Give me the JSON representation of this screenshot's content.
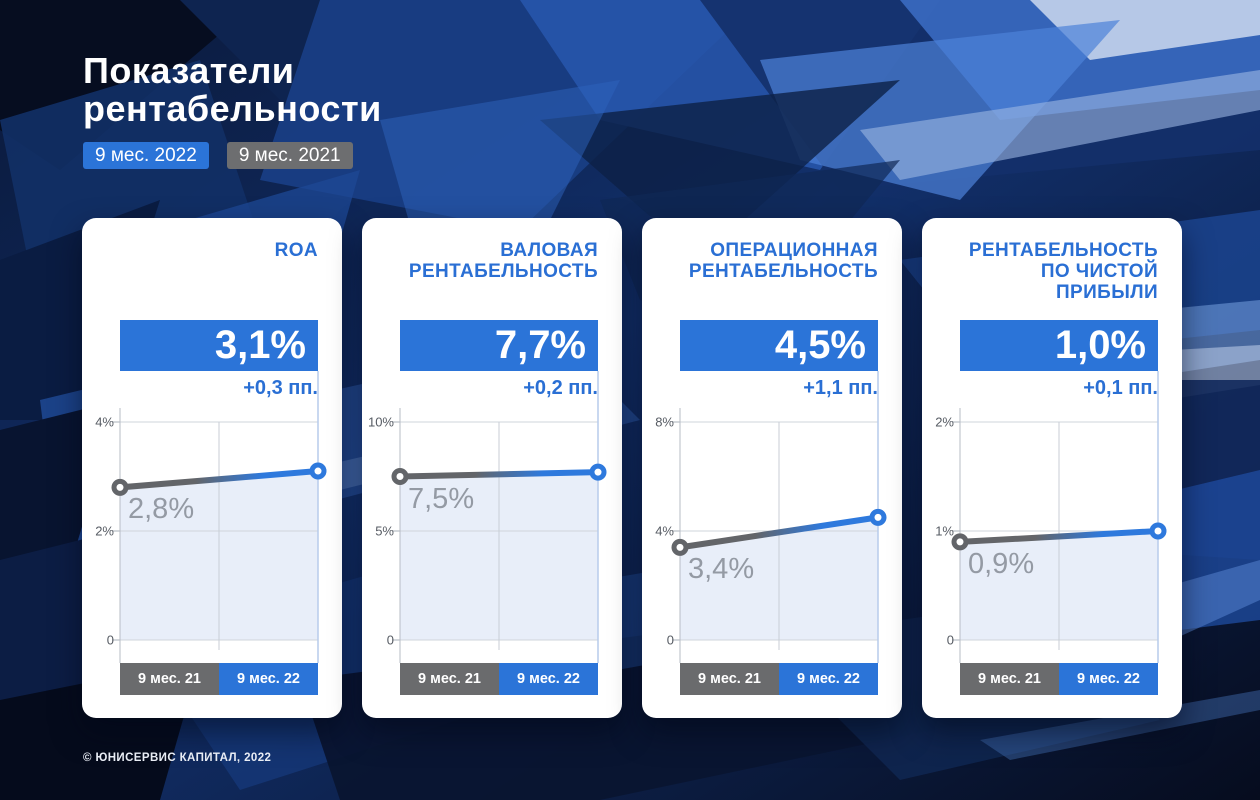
{
  "header": {
    "title_line1": "Показатели",
    "title_line2": "рентабельности",
    "legend": [
      {
        "label": "9 мес. 2022",
        "color": "#2b74d8"
      },
      {
        "label": "9 мес. 2021",
        "color": "#6d6e70"
      }
    ]
  },
  "footer": {
    "copyright": "© ЮНИСЕРВИС КАПИТАЛ, 2022"
  },
  "colors": {
    "accent_blue": "#2b74d8",
    "neutral_gray": "#6a6b6d",
    "line_blue": "#2e79dd",
    "line_gray": "#636569",
    "chart_fill": "#e8eef9",
    "card_bg": "#ffffff",
    "background_navy": "#0b1838"
  },
  "chart_data": [
    {
      "type": "line",
      "title": "ROA",
      "categories": [
        "9 мес. 21",
        "9 мес. 22"
      ],
      "values": [
        2.8,
        3.1
      ],
      "value_label": "3,1%",
      "delta_label": "+0,3 пп.",
      "prev_value_label": "2,8%",
      "ylim": [
        0,
        4
      ],
      "yticks": [
        "4%",
        "2%",
        "0"
      ],
      "grid": true,
      "area_fill": true,
      "legend_position": "none"
    },
    {
      "type": "line",
      "title": "ВАЛОВАЯ РЕНТАБЕЛЬНОСТЬ",
      "categories": [
        "9 мес. 21",
        "9 мес. 22"
      ],
      "values": [
        7.5,
        7.7
      ],
      "value_label": "7,7%",
      "delta_label": "+0,2 пп.",
      "prev_value_label": "7,5%",
      "ylim": [
        0,
        10
      ],
      "yticks": [
        "10%",
        "5%",
        "0"
      ],
      "grid": true,
      "area_fill": true,
      "legend_position": "none"
    },
    {
      "type": "line",
      "title": "ОПЕРАЦИОННАЯ РЕНТАБЕЛЬНОСТЬ",
      "categories": [
        "9 мес. 21",
        "9 мес. 22"
      ],
      "values": [
        3.4,
        4.5
      ],
      "value_label": "4,5%",
      "delta_label": "+1,1 пп.",
      "prev_value_label": "3,4%",
      "ylim": [
        0,
        8
      ],
      "yticks": [
        "8%",
        "4%",
        "0"
      ],
      "grid": true,
      "area_fill": true,
      "legend_position": "none"
    },
    {
      "type": "line",
      "title": "РЕНТАБЕЛЬНОСТЬ ПО ЧИСТОЙ ПРИБЫЛИ",
      "categories": [
        "9 мес. 21",
        "9 мес. 22"
      ],
      "values": [
        0.9,
        1.0
      ],
      "value_label": "1,0%",
      "delta_label": "+0,1 пп.",
      "prev_value_label": "0,9%",
      "ylim": [
        0,
        2
      ],
      "yticks": [
        "2%",
        "1%",
        "0"
      ],
      "grid": true,
      "area_fill": true,
      "legend_position": "none"
    }
  ]
}
